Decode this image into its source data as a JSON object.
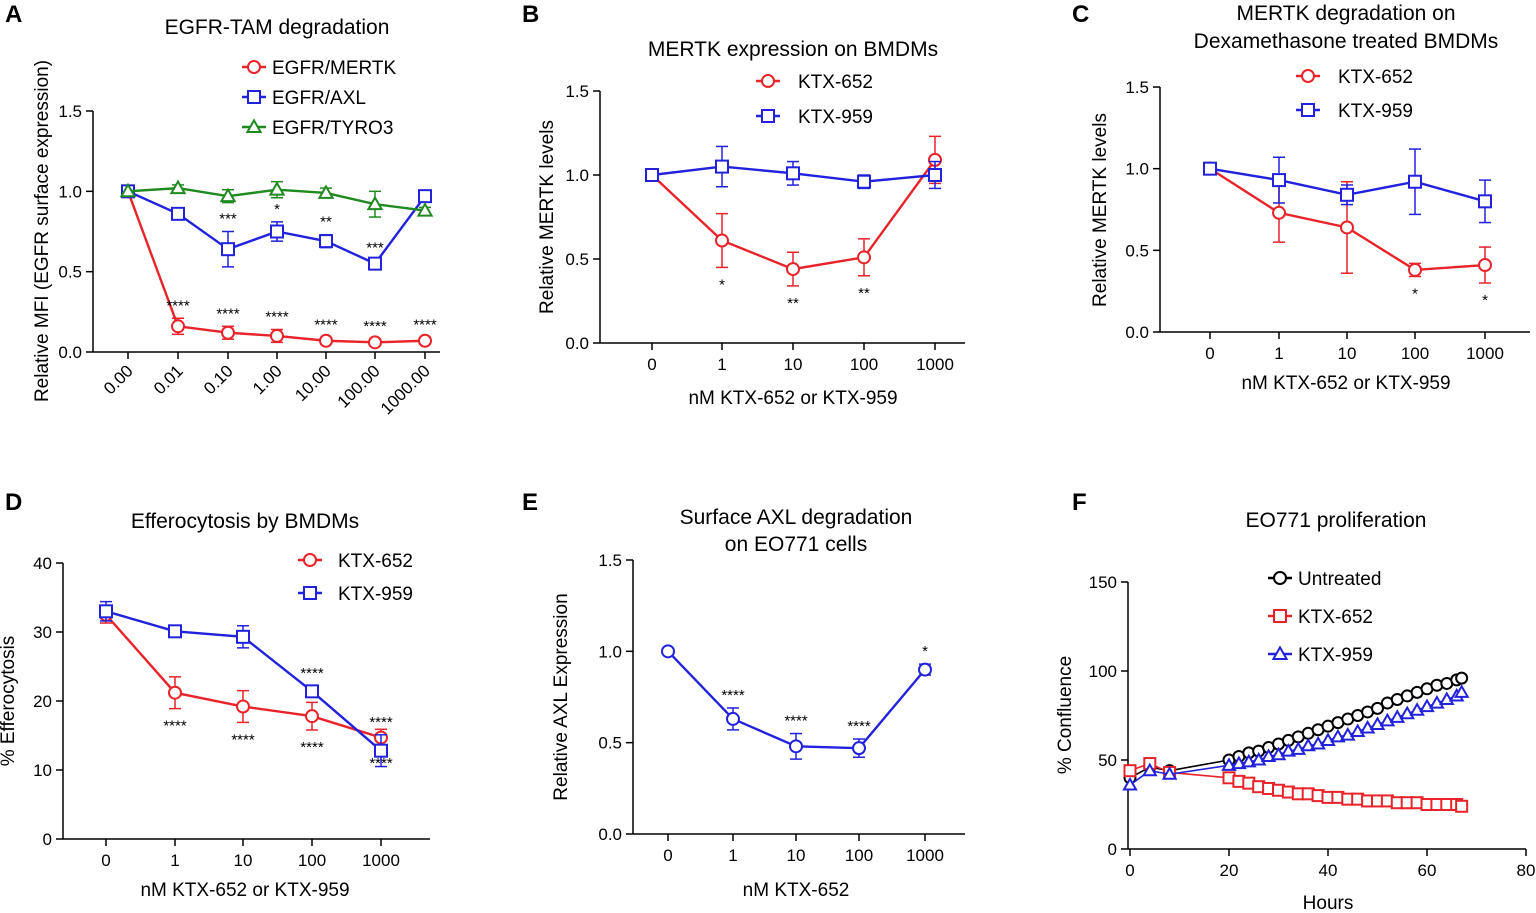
{
  "chart_data": [
    {
      "panel": "A",
      "type": "line",
      "title": "EGFR-TAM degradation",
      "xlabel": "",
      "ylabel": "Relative MFI (EGFR surface expression)",
      "categories": [
        "0.00",
        "0.01",
        "0.10",
        "1.00",
        "10.00",
        "100.00",
        "1000.00"
      ],
      "yticks": [
        "0.0",
        "0.5",
        "1.0",
        "1.5"
      ],
      "ylim": [
        0,
        1.5
      ],
      "legend_position": "top-right",
      "series": [
        {
          "name": "EGFR/MERTK",
          "color": "#e8232a",
          "marker": "circle",
          "values": [
            1.0,
            0.16,
            0.12,
            0.1,
            0.07,
            0.06,
            0.07
          ],
          "errors": [
            0,
            0.05,
            0.04,
            0.04,
            0.02,
            0.02,
            0.02
          ],
          "annotations": [
            "",
            "****",
            "****",
            "****",
            "****",
            "****",
            "****"
          ]
        },
        {
          "name": "EGFR/AXL",
          "color": "#2222dd",
          "marker": "square",
          "values": [
            1.0,
            0.86,
            0.64,
            0.75,
            0.69,
            0.55,
            0.97
          ],
          "errors": [
            0,
            0.02,
            0.11,
            0.06,
            0.04,
            0.02,
            0.02
          ],
          "annotations": [
            "",
            "",
            "***",
            "*",
            "**",
            "***",
            ""
          ]
        },
        {
          "name": "EGFR/TYRO3",
          "color": "#1f8a1f",
          "marker": "triangle",
          "values": [
            1.0,
            1.02,
            0.97,
            1.01,
            0.99,
            0.92,
            0.88
          ],
          "errors": [
            0,
            0.02,
            0.04,
            0.05,
            0.03,
            0.08,
            0.02
          ],
          "annotations": [
            "",
            "",
            "",
            "",
            "",
            "",
            ""
          ]
        }
      ]
    },
    {
      "panel": "B",
      "type": "line",
      "title": "MERTK expression on BMDMs",
      "xlabel": "nM KTX-652 or KTX-959",
      "ylabel": "Relative MERTK levels",
      "categories": [
        "0",
        "1",
        "10",
        "100",
        "1000"
      ],
      "yticks": [
        "0.0",
        "0.5",
        "1.0",
        "1.5"
      ],
      "ylim": [
        0,
        1.5
      ],
      "legend_position": "top",
      "series": [
        {
          "name": "KTX-652",
          "color": "#e8232a",
          "marker": "circle",
          "values": [
            1.0,
            0.61,
            0.44,
            0.51,
            1.09
          ],
          "errors": [
            0,
            0.16,
            0.1,
            0.11,
            0.14
          ],
          "annotations": [
            "",
            "*",
            "**",
            "**",
            ""
          ]
        },
        {
          "name": "KTX-959",
          "color": "#2222dd",
          "marker": "square",
          "values": [
            1.0,
            1.05,
            1.01,
            0.96,
            1.0
          ],
          "errors": [
            0,
            0.12,
            0.07,
            0.04,
            0.08
          ],
          "annotations": [
            "",
            "",
            "",
            "",
            ""
          ]
        }
      ]
    },
    {
      "panel": "C",
      "type": "line",
      "title_line1": "MERTK degradation on",
      "title_line2": "Dexamethasone treated BMDMs",
      "xlabel": "nM KTX-652 or KTX-959",
      "ylabel": "Relative MERTK levels",
      "categories": [
        "0",
        "1",
        "10",
        "100",
        "1000"
      ],
      "yticks": [
        "0.0",
        "0.5",
        "1.0",
        "1.5"
      ],
      "ylim": [
        0,
        1.5
      ],
      "legend_position": "top",
      "series": [
        {
          "name": "KTX-652",
          "color": "#e8232a",
          "marker": "circle",
          "values": [
            1.0,
            0.73,
            0.64,
            0.38,
            0.41
          ],
          "errors": [
            0,
            0.18,
            0.28,
            0.04,
            0.11
          ],
          "annotations": [
            "",
            "",
            "",
            "*",
            "*"
          ]
        },
        {
          "name": "KTX-959",
          "color": "#2222dd",
          "marker": "square",
          "values": [
            1.0,
            0.93,
            0.84,
            0.92,
            0.8
          ],
          "errors": [
            0,
            0.14,
            0.06,
            0.2,
            0.13
          ],
          "annotations": [
            "",
            "",
            "",
            "",
            ""
          ]
        }
      ]
    },
    {
      "panel": "D",
      "type": "line",
      "title": "Efferocytosis by BMDMs",
      "xlabel": "nM KTX-652 or KTX-959",
      "ylabel": "% Efferocytosis",
      "categories": [
        "0",
        "1",
        "10",
        "100",
        "1000"
      ],
      "yticks": [
        "0",
        "10",
        "20",
        "30",
        "40"
      ],
      "ylim": [
        0,
        40
      ],
      "legend_position": "top-right",
      "series": [
        {
          "name": "KTX-652",
          "color": "#e8232a",
          "marker": "circle",
          "values": [
            32.5,
            21.2,
            19.2,
            17.8,
            14.7
          ],
          "errors": [
            1.2,
            2.3,
            2.3,
            2.0,
            1.2
          ],
          "annotations": [
            "",
            "****",
            "****",
            "****",
            "****"
          ],
          "annotation_side": "below"
        },
        {
          "name": "KTX-959",
          "color": "#2222dd",
          "marker": "square",
          "values": [
            33.0,
            30.1,
            29.3,
            21.4,
            12.8
          ],
          "errors": [
            1.4,
            0.5,
            1.6,
            0.8,
            2.3
          ],
          "annotations": [
            "",
            "",
            "",
            "****",
            "****"
          ]
        }
      ]
    },
    {
      "panel": "E",
      "type": "line",
      "title_line1": "Surface AXL degradation",
      "title_line2": "on EO771 cells",
      "xlabel": "nM KTX-652",
      "ylabel": "Relative AXL Expression",
      "categories": [
        "0",
        "1",
        "10",
        "100",
        "1000"
      ],
      "yticks": [
        "0.0",
        "0.5",
        "1.0",
        "1.5"
      ],
      "ylim": [
        0,
        1.5
      ],
      "series": [
        {
          "name": "KTX-652",
          "color": "#2222dd",
          "marker": "circle",
          "values": [
            1.0,
            0.63,
            0.48,
            0.47,
            0.9
          ],
          "errors": [
            0,
            0.06,
            0.07,
            0.05,
            0.03
          ],
          "annotations": [
            "",
            "****",
            "****",
            "****",
            "*"
          ]
        }
      ]
    },
    {
      "panel": "F",
      "type": "line",
      "title": "EO771 proliferation",
      "xlabel": "Hours",
      "ylabel": "% Confluence",
      "xticks": [
        "0",
        "20",
        "40",
        "60",
        "80"
      ],
      "yticks": [
        "0",
        "50",
        "100",
        "150"
      ],
      "xlim": [
        0,
        80
      ],
      "ylim": [
        0,
        150
      ],
      "legend_position": "top",
      "series": [
        {
          "name": "Untreated",
          "color": "#000000",
          "marker": "circle",
          "x": [
            0,
            4,
            8,
            20,
            22,
            24,
            26,
            28,
            30,
            32,
            34,
            36,
            38,
            40,
            42,
            44,
            46,
            48,
            50,
            52,
            54,
            56,
            58,
            60,
            62,
            64,
            66,
            67
          ],
          "y": [
            40,
            46,
            44,
            50,
            52,
            54,
            55,
            57,
            59,
            61,
            63,
            65,
            67,
            69,
            71,
            73,
            75,
            77,
            79,
            82,
            84,
            86,
            88,
            90,
            92,
            93,
            95,
            96
          ]
        },
        {
          "name": "KTX-652",
          "color": "#e8232a",
          "marker": "square",
          "x": [
            0,
            4,
            8,
            20,
            22,
            24,
            26,
            28,
            30,
            32,
            34,
            36,
            38,
            40,
            42,
            44,
            46,
            48,
            50,
            52,
            54,
            56,
            58,
            60,
            62,
            64,
            66,
            67
          ],
          "y": [
            44,
            48,
            43,
            40,
            38,
            37,
            35,
            34,
            33,
            32,
            31,
            31,
            30,
            29,
            29,
            28,
            28,
            27,
            27,
            27,
            26,
            26,
            26,
            25,
            25,
            25,
            25,
            24
          ]
        },
        {
          "name": "KTX-959",
          "color": "#2222dd",
          "marker": "triangle",
          "x": [
            0,
            4,
            8,
            20,
            22,
            24,
            26,
            28,
            30,
            32,
            34,
            36,
            38,
            40,
            42,
            44,
            46,
            48,
            50,
            52,
            54,
            56,
            58,
            60,
            62,
            64,
            66,
            67
          ],
          "y": [
            36,
            44,
            42,
            47,
            48,
            49,
            50,
            52,
            53,
            55,
            56,
            58,
            59,
            61,
            63,
            64,
            66,
            68,
            70,
            72,
            74,
            76,
            78,
            80,
            82,
            84,
            86,
            88
          ]
        }
      ]
    }
  ]
}
